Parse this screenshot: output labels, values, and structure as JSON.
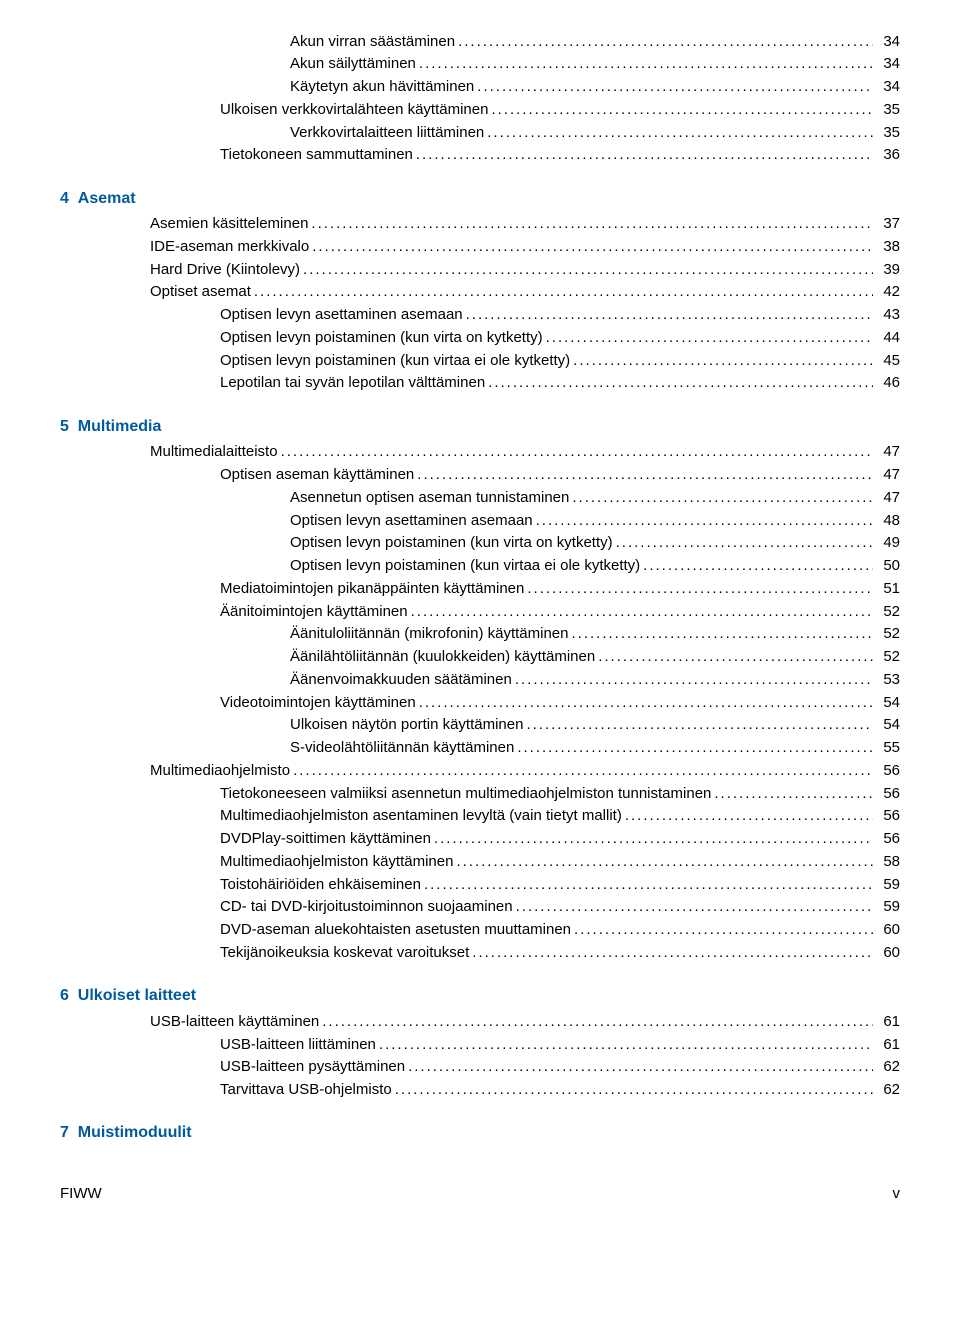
{
  "colors": {
    "chapter_text": "#005a9e",
    "body_text": "#000000",
    "background": "#ffffff"
  },
  "typography": {
    "body_font_family": "Arial, Helvetica, sans-serif",
    "body_font_size_pt": 11,
    "chapter_font_size_pt": 12,
    "chapter_font_weight": "bold"
  },
  "toc": [
    {
      "level": 3,
      "label": "Akun virran säästäminen",
      "page": "34"
    },
    {
      "level": 3,
      "label": "Akun säilyttäminen",
      "page": "34"
    },
    {
      "level": 3,
      "label": "Käytetyn akun hävittäminen",
      "page": "34"
    },
    {
      "level": 2,
      "label": "Ulkoisen verkkovirtalähteen käyttäminen",
      "page": "35"
    },
    {
      "level": 3,
      "label": "Verkkovirtalaitteen liittäminen",
      "page": "35"
    },
    {
      "level": 2,
      "label": "Tietokoneen sammuttaminen",
      "page": "36"
    },
    {
      "chapter": true,
      "num": "4",
      "title": "Asemat"
    },
    {
      "level": 1,
      "label": "Asemien käsitteleminen",
      "page": "37"
    },
    {
      "level": 1,
      "label": "IDE-aseman merkkivalo",
      "page": "38"
    },
    {
      "level": 1,
      "label": "Hard Drive (Kiintolevy)",
      "page": "39"
    },
    {
      "level": 1,
      "label": "Optiset asemat",
      "page": "42"
    },
    {
      "level": 2,
      "label": "Optisen levyn asettaminen asemaan",
      "page": "43"
    },
    {
      "level": 2,
      "label": "Optisen levyn poistaminen (kun virta on kytketty)",
      "page": "44"
    },
    {
      "level": 2,
      "label": "Optisen levyn poistaminen (kun virtaa ei ole kytketty)",
      "page": "45"
    },
    {
      "level": 2,
      "label": "Lepotilan tai syvän lepotilan välttäminen",
      "page": "46"
    },
    {
      "chapter": true,
      "num": "5",
      "title": "Multimedia"
    },
    {
      "level": 1,
      "label": "Multimedialaitteisto",
      "page": "47"
    },
    {
      "level": 2,
      "label": "Optisen aseman käyttäminen",
      "page": "47"
    },
    {
      "level": 3,
      "label": "Asennetun optisen aseman tunnistaminen",
      "page": "47"
    },
    {
      "level": 3,
      "label": "Optisen levyn asettaminen asemaan",
      "page": "48"
    },
    {
      "level": 3,
      "label": "Optisen levyn poistaminen (kun virta on kytketty)",
      "page": "49"
    },
    {
      "level": 3,
      "label": "Optisen levyn poistaminen (kun virtaa ei ole kytketty)",
      "page": "50"
    },
    {
      "level": 2,
      "label": "Mediatoimintojen pikanäppäinten käyttäminen",
      "page": "51"
    },
    {
      "level": 2,
      "label": "Äänitoimintojen käyttäminen",
      "page": "52"
    },
    {
      "level": 3,
      "label": "Äänituloliitännän (mikrofonin) käyttäminen",
      "page": "52"
    },
    {
      "level": 3,
      "label": "Äänilähtöliitännän (kuulokkeiden) käyttäminen",
      "page": "52"
    },
    {
      "level": 3,
      "label": "Äänenvoimakkuuden säätäminen",
      "page": "53"
    },
    {
      "level": 2,
      "label": "Videotoimintojen käyttäminen",
      "page": "54"
    },
    {
      "level": 3,
      "label": "Ulkoisen näytön portin käyttäminen",
      "page": "54"
    },
    {
      "level": 3,
      "label": "S-videolähtöliitännän käyttäminen",
      "page": "55"
    },
    {
      "level": 1,
      "label": "Multimediaohjelmisto",
      "page": "56"
    },
    {
      "level": 2,
      "label": "Tietokoneeseen valmiiksi asennetun multimediaohjelmiston tunnistaminen",
      "page": "56"
    },
    {
      "level": 2,
      "label": "Multimediaohjelmiston asentaminen levyltä (vain tietyt mallit)",
      "page": "56"
    },
    {
      "level": 2,
      "label": "DVDPlay-soittimen käyttäminen",
      "page": "56"
    },
    {
      "level": 2,
      "label": "Multimediaohjelmiston käyttäminen",
      "page": "58"
    },
    {
      "level": 2,
      "label": "Toistohäiriöiden ehkäiseminen",
      "page": "59"
    },
    {
      "level": 2,
      "label": "CD- tai DVD-kirjoitustoiminnon suojaaminen",
      "page": "59"
    },
    {
      "level": 2,
      "label": "DVD-aseman aluekohtaisten asetusten muuttaminen",
      "page": "60"
    },
    {
      "level": 2,
      "label": "Tekijänoikeuksia koskevat varoitukset",
      "page": "60"
    },
    {
      "chapter": true,
      "num": "6",
      "title": "Ulkoiset laitteet"
    },
    {
      "level": 1,
      "label": "USB-laitteen käyttäminen",
      "page": "61"
    },
    {
      "level": 2,
      "label": "USB-laitteen liittäminen",
      "page": "61"
    },
    {
      "level": 2,
      "label": "USB-laitteen pysäyttäminen",
      "page": "62"
    },
    {
      "level": 2,
      "label": "Tarvittava USB-ohjelmisto",
      "page": "62"
    },
    {
      "chapter": true,
      "num": "7",
      "title": "Muistimoduulit"
    }
  ],
  "footer": {
    "left": "FIWW",
    "right": "v"
  }
}
